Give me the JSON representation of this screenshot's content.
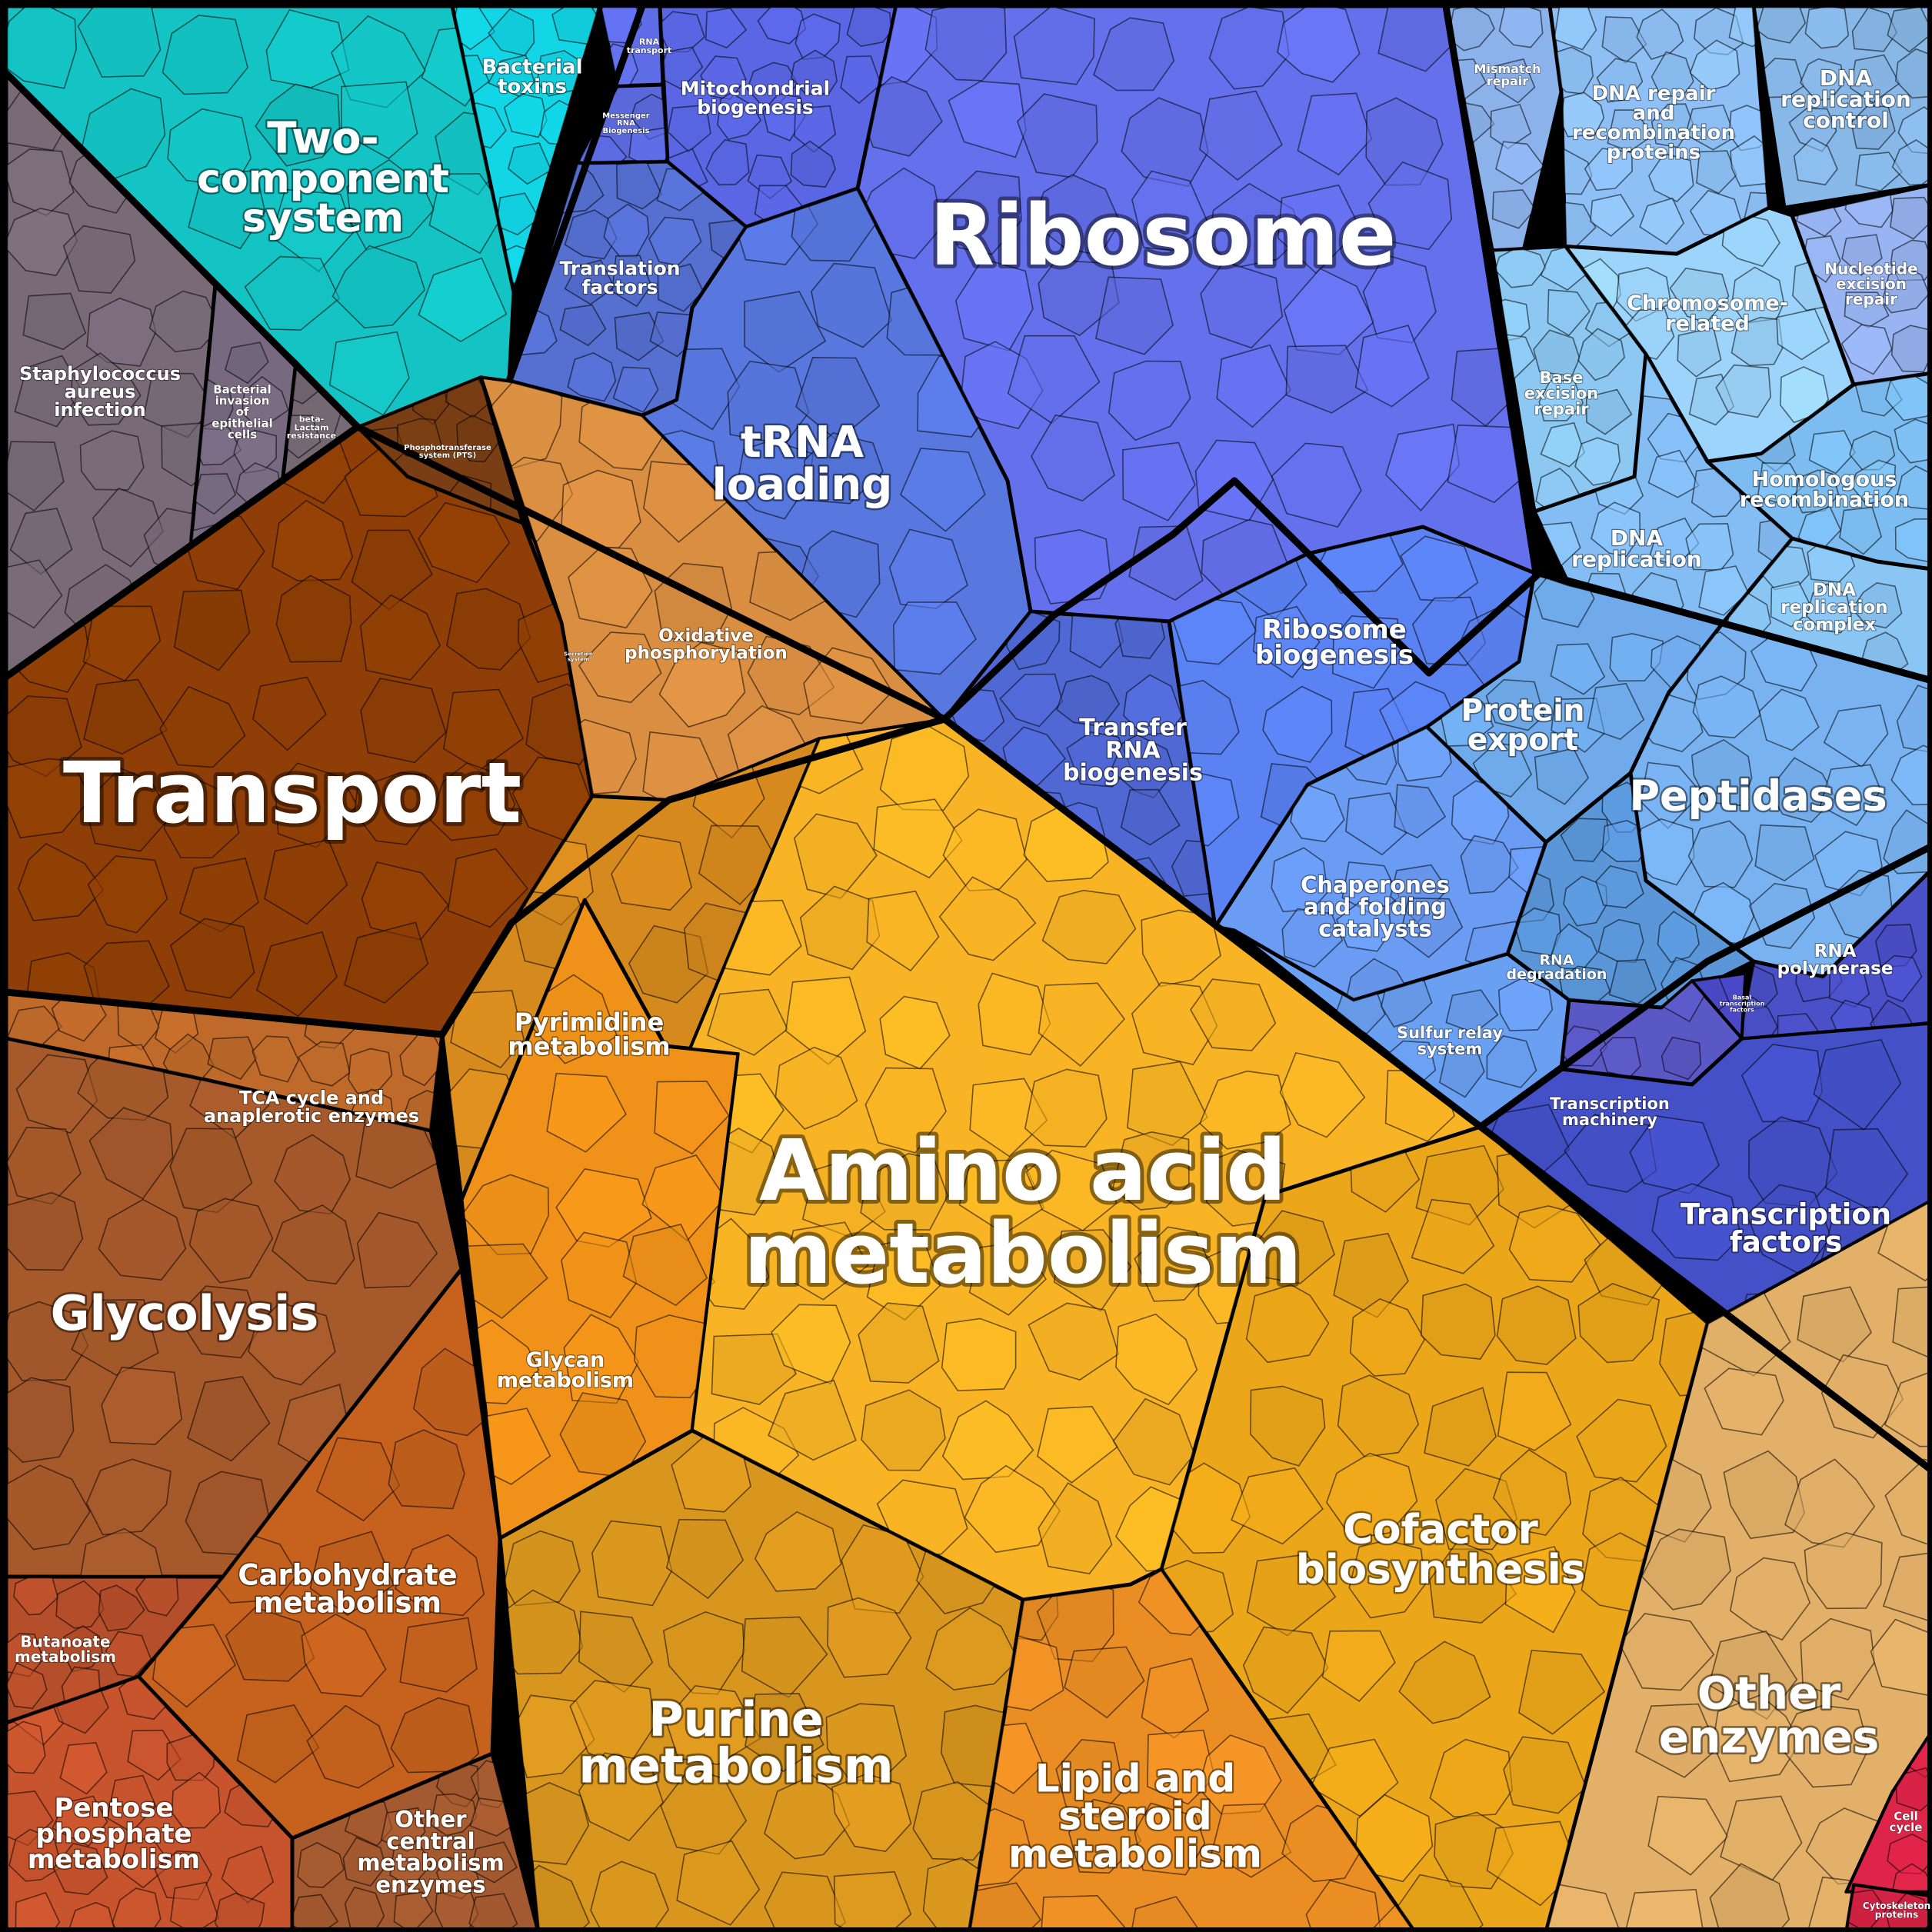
{
  "regions": [
    {
      "id": "two-component",
      "label": [
        "Two-",
        "component",
        "system"
      ],
      "color": "#14c4c4"
    },
    {
      "id": "bacterial-toxins",
      "label": [
        "Bacterial",
        "toxins"
      ],
      "color": "#12d6e6"
    },
    {
      "id": "rna-transport",
      "label": [
        "RNA",
        "transport"
      ],
      "color": "#5f6ee6"
    },
    {
      "id": "messenger-rna",
      "label": [
        "Messenger",
        "RNA",
        "Biogenesis"
      ],
      "color": "#5a68dc"
    },
    {
      "id": "mito-biogenesis",
      "label": [
        "Mitochondrial",
        "biogenesis"
      ],
      "color": "#5a66e4"
    },
    {
      "id": "ribosome",
      "label": [
        "Ribosome"
      ],
      "color": "#6470ec"
    },
    {
      "id": "translation-factors",
      "label": [
        "Translation",
        "factors"
      ],
      "color": "#5670d2"
    },
    {
      "id": "trna-loading",
      "label": [
        "tRNA",
        "loading"
      ],
      "color": "#5878e0"
    },
    {
      "id": "ribosome-biogenesis",
      "label": [
        "Ribosome",
        "biogenesis"
      ],
      "color": "#5a82f2"
    },
    {
      "id": "transfer-rna-biogenesis",
      "label": [
        "Transfer",
        "RNA",
        "biogenesis"
      ],
      "color": "#5068d4"
    },
    {
      "id": "mismatch-repair",
      "label": [
        "Mismatch",
        "repair"
      ],
      "color": "#8cb2ec"
    },
    {
      "id": "dna-repair",
      "label": [
        "DNA repair",
        "and",
        "recombination",
        "proteins"
      ],
      "color": "#8ec0f6"
    },
    {
      "id": "dna-replication-control",
      "label": [
        "DNA",
        "replication",
        "control"
      ],
      "color": "#88b8e8"
    },
    {
      "id": "nucleotide-excision",
      "label": [
        "Nucleotide",
        "excision",
        "repair"
      ],
      "color": "#98b4f2"
    },
    {
      "id": "chromosome-related",
      "label": [
        "Chromosome-",
        "related"
      ],
      "color": "#9cd4fb"
    },
    {
      "id": "base-excision",
      "label": [
        "Base",
        "excision",
        "repair"
      ],
      "color": "#8cc8f2"
    },
    {
      "id": "homologous-recombination",
      "label": [
        "Homologous",
        "recombination"
      ],
      "color": "#7cbcf0"
    },
    {
      "id": "dna-replication",
      "label": [
        "DNA",
        "replication"
      ],
      "color": "#84bcf4"
    },
    {
      "id": "dna-replication-complex",
      "label": [
        "DNA",
        "replication",
        "complex"
      ],
      "color": "#8ac6f4"
    },
    {
      "id": "protein-export",
      "label": [
        "Protein",
        "export"
      ],
      "color": "#70aaea"
    },
    {
      "id": "peptidases",
      "label": [
        "Peptidases"
      ],
      "color": "#78b2f0"
    },
    {
      "id": "chaperones",
      "label": [
        "Chaperones",
        "and folding",
        "catalysts"
      ],
      "color": "#6a9cf4"
    },
    {
      "id": "rna-degradation",
      "label": [
        "RNA",
        "degradation"
      ],
      "color": "#5a96d8"
    },
    {
      "id": "sulfur-relay",
      "label": [
        "Sulfur relay",
        "system"
      ],
      "color": "#6aa0f2"
    },
    {
      "id": "rna-polymerase",
      "label": [
        "RNA",
        "polymerase"
      ],
      "color": "#4a50c8"
    },
    {
      "id": "basal-transcription",
      "label": [
        "Basal",
        "transcription",
        "factors"
      ],
      "color": "#4a48c6"
    },
    {
      "id": "transcription-machinery",
      "label": [
        "Transcription",
        "machinery"
      ],
      "color": "#5a58c4"
    },
    {
      "id": "transcription-factors",
      "label": [
        "Transcription",
        "factors"
      ],
      "color": "#4450c8"
    },
    {
      "id": "staph-infection",
      "label": [
        "Staphylococcus",
        "aureus",
        "infection"
      ],
      "color": "#7a6a78"
    },
    {
      "id": "bacterial-invasion",
      "label": [
        "Bacterial",
        "invasion",
        "of",
        "epithelial",
        "cells"
      ],
      "color": "#776a80"
    },
    {
      "id": "beta-lactam",
      "label": [
        "beta-",
        "Lactam",
        "resistance"
      ],
      "color": "#746872"
    },
    {
      "id": "pts",
      "label": [
        "Phosphotransferase",
        "system (PTS)"
      ],
      "color": "#7a3e14"
    },
    {
      "id": "transport",
      "label": [
        "Transport"
      ],
      "color": "#8e3e06"
    },
    {
      "id": "secretion-system",
      "label": [
        "Secretion",
        "system"
      ],
      "color": "#8a3a0e"
    },
    {
      "id": "oxidative-phosphorylation",
      "label": [
        "Oxidative",
        "phosphorylation"
      ],
      "color": "#d98e42"
    },
    {
      "id": "pyrimidine",
      "label": [
        "Pyrimidine",
        "metabolism"
      ],
      "color": "#d68a1e"
    },
    {
      "id": "amino-acid",
      "label": [
        "Amino acid",
        "metabolism"
      ],
      "color": "#f8b424"
    },
    {
      "id": "tca-cycle",
      "label": [
        "TCA cycle and",
        "anaplerotic enzymes"
      ],
      "color": "#bf6a2a"
    },
    {
      "id": "glycolysis",
      "label": [
        "Glycolysis"
      ],
      "color": "#a65a2c"
    },
    {
      "id": "glycan",
      "label": [
        "Glycan",
        "metabolism"
      ],
      "color": "#f0921a"
    },
    {
      "id": "carbohydrate",
      "label": [
        "Carbohydrate",
        "metabolism"
      ],
      "color": "#c6621e"
    },
    {
      "id": "butanoate",
      "label": [
        "Butanoate",
        "metabolism"
      ],
      "color": "#b54e2a"
    },
    {
      "id": "pentose-phosphate",
      "label": [
        "Pentose",
        "phosphate",
        "metabolism"
      ],
      "color": "#c8542e"
    },
    {
      "id": "other-central",
      "label": [
        "Other",
        "central",
        "metabolism",
        "enzymes"
      ],
      "color": "#a45a30"
    },
    {
      "id": "purine",
      "label": [
        "Purine",
        "metabolism"
      ],
      "color": "#d8961e"
    },
    {
      "id": "lipid-steroid",
      "label": [
        "Lipid and",
        "steroid",
        "metabolism"
      ],
      "color": "#ea8e24"
    },
    {
      "id": "cofactor",
      "label": [
        "Cofactor",
        "biosynthesis"
      ],
      "color": "#eca61a"
    },
    {
      "id": "other-enzymes",
      "label": [
        "Other",
        "enzymes"
      ],
      "color": "#e2b068"
    },
    {
      "id": "cell-cycle",
      "label": [
        "Cell",
        "cycle"
      ],
      "color": "#de2448"
    },
    {
      "id": "cytoskeleton",
      "label": [
        "Cytoskeleton",
        "proteins"
      ],
      "color": "#d42244"
    }
  ]
}
